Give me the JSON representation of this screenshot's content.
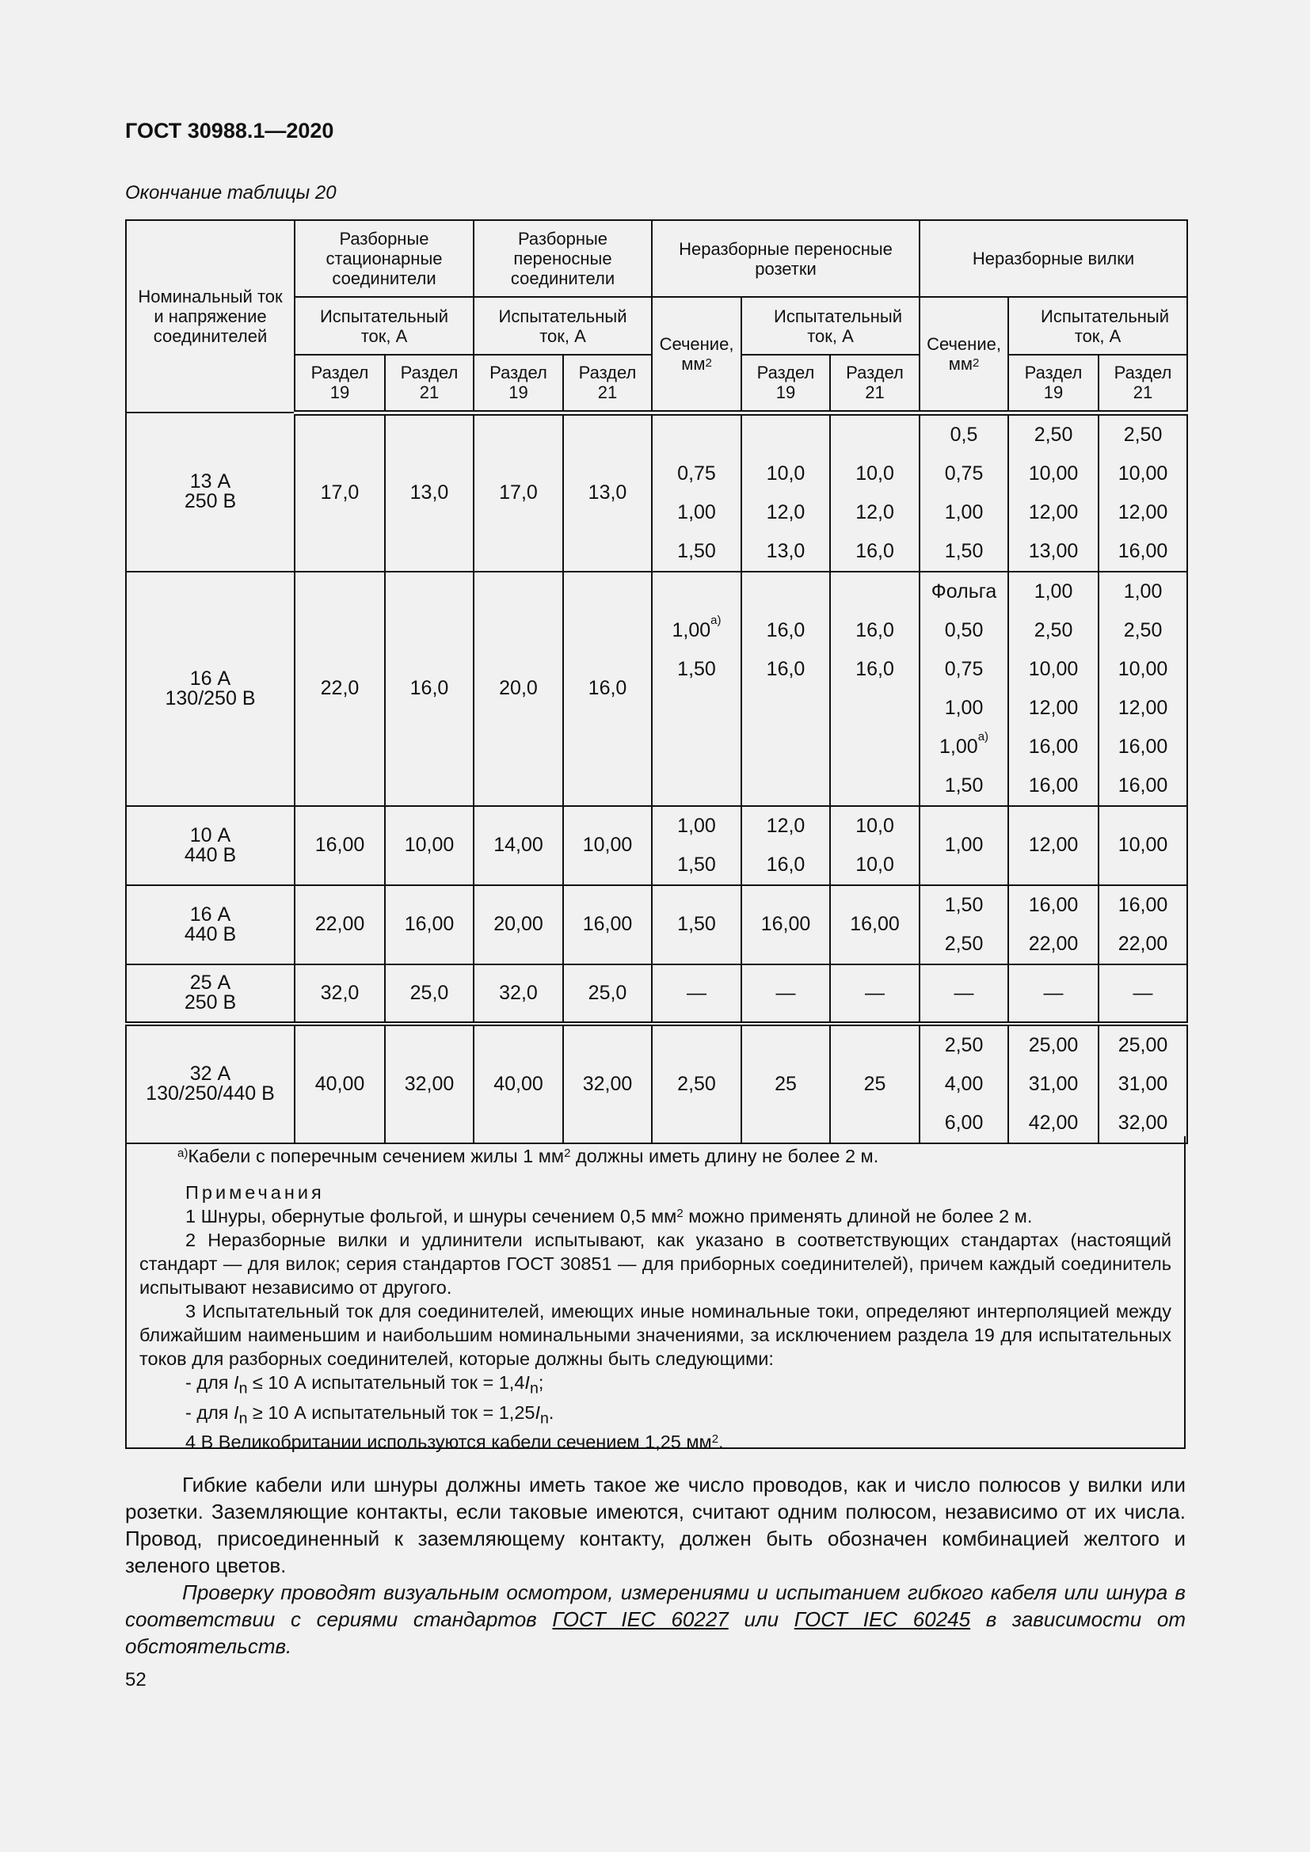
{
  "header": {
    "doc_title": "ГОСТ 30988.1—2020",
    "table_caption": "Окончание таблицы 20"
  },
  "table": {
    "head": {
      "c0": "Номинальный ток и напряжение соединителей",
      "g1": "Разборные стационарные соединители",
      "g2": "Разборные переносные соединители",
      "g3": "Неразборные переносные розетки",
      "g4": "Неразборные вилки",
      "test_current": "Испытательный ток, А",
      "section": "Сечение, мм",
      "section_sup": "2",
      "r19": "Раздел 19",
      "r21": "Раздел 21"
    },
    "rows": [
      {
        "label": [
          "13 А",
          "250 В"
        ],
        "cells": [
          [
            "17,0"
          ],
          [
            "13,0"
          ],
          [
            "17,0"
          ],
          [
            "13,0"
          ],
          [
            "",
            "0,75",
            "1,00",
            "1,50"
          ],
          [
            "",
            "10,0",
            "12,0",
            "13,0"
          ],
          [
            "",
            "10,0",
            "12,0",
            "16,0"
          ],
          [
            "0,5",
            "0,75",
            "1,00",
            "1,50"
          ],
          [
            "2,50",
            "10,00",
            "12,00",
            "13,00"
          ],
          [
            "2,50",
            "10,00",
            "12,00",
            "16,00"
          ]
        ]
      },
      {
        "label": [
          "16 А",
          "130/250 В"
        ],
        "cells": [
          [
            "22,0"
          ],
          [
            "16,0"
          ],
          [
            "20,0"
          ],
          [
            "16,0"
          ],
          [
            "",
            "1,00|а)",
            "1,50",
            "",
            "",
            ""
          ],
          [
            "",
            "16,0",
            "16,0",
            "",
            "",
            ""
          ],
          [
            "",
            "16,0",
            "16,0",
            "",
            "",
            ""
          ],
          [
            "Фольга",
            "0,50",
            "0,75",
            "1,00",
            "1,00|а)",
            "1,50"
          ],
          [
            "1,00",
            "2,50",
            "10,00",
            "12,00",
            "16,00",
            "16,00"
          ],
          [
            "1,00",
            "2,50",
            "10,00",
            "12,00",
            "16,00",
            "16,00"
          ]
        ]
      },
      {
        "label": [
          "10 А",
          "440 В"
        ],
        "cells": [
          [
            "16,00"
          ],
          [
            "10,00"
          ],
          [
            "14,00"
          ],
          [
            "10,00"
          ],
          [
            "1,00",
            "1,50"
          ],
          [
            "12,0",
            "16,0"
          ],
          [
            "10,0",
            "10,0"
          ],
          [
            "1,00"
          ],
          [
            "12,00"
          ],
          [
            "10,00"
          ]
        ]
      },
      {
        "label": [
          "16 А",
          "440 В"
        ],
        "cells": [
          [
            "22,00"
          ],
          [
            "16,00"
          ],
          [
            "20,00"
          ],
          [
            "16,00"
          ],
          [
            "1,50"
          ],
          [
            "16,00"
          ],
          [
            "16,00"
          ],
          [
            "1,50",
            "2,50"
          ],
          [
            "16,00",
            "22,00"
          ],
          [
            "16,00",
            "22,00"
          ]
        ]
      },
      {
        "label": [
          "25 А",
          "250 В"
        ],
        "cells": [
          [
            "32,0"
          ],
          [
            "25,0"
          ],
          [
            "32,0"
          ],
          [
            "25,0"
          ],
          [
            "—"
          ],
          [
            "—"
          ],
          [
            "—"
          ],
          [
            "—"
          ],
          [
            "—"
          ],
          [
            "—"
          ]
        ]
      },
      {
        "label": [
          "32 А",
          "130/250/440 В"
        ],
        "cells": [
          [
            "40,00"
          ],
          [
            "32,00"
          ],
          [
            "40,00"
          ],
          [
            "32,00"
          ],
          [
            "2,50"
          ],
          [
            "25"
          ],
          [
            "25"
          ],
          [
            "2,50",
            "4,00",
            "6,00"
          ],
          [
            "25,00",
            "31,00",
            "42,00"
          ],
          [
            "25,00",
            "31,00",
            "32,00"
          ]
        ]
      }
    ]
  },
  "notes": {
    "footnote_mark": "а)",
    "footnote_a": "Кабели с поперечным сечением жилы 1 мм",
    "footnote_b": " должны иметь длину не более 2 м.",
    "heading": "Примечания",
    "n1a": "1 Шнуры, обернутые фольгой, и шнуры сечением 0,5 мм",
    "n1b": " можно применять длиной не более 2 м.",
    "n2": "2 Неразборные вилки и удлинители испытывают, как указано в соответствующих стандартах (настоящий стандарт — для вилок; серия стандартов ГОСТ 30851 — для приборных соединителей), причем каждый соединитель испытывают независимо от другого.",
    "n3": "3 Испытательный ток для соединителей, имеющих иные номинальные токи, определяют интерполяцией между ближайшим наименьшим и наибольшим номинальными значениями, за исключением раздела 19 для испытательных токов для разборных соединителей, которые должны быть следующими:",
    "b1a": "- для ",
    "b1i": "I",
    "b1s": "n",
    "b1b": " ≤ 10 А испытательный ток = 1,4",
    "b1end": ";",
    "b2a": "- для ",
    "b2i": "I",
    "b2s": "n",
    "b2b": " ≥ 10 А испытательный ток = 1,25",
    "b2end": ".",
    "n4a": "4 В Великобритании используются кабели сечением 1,25 мм",
    "n4b": "."
  },
  "body": {
    "p1": "Гибкие кабели или шнуры должны иметь такое же число проводов, как и число полюсов у вилки или розетки. Заземляющие контакты, если таковые имеются, считают одним полюсом, независимо от их числа. Провод, присоединенный к заземляющему контакту, должен быть обозначен комбинацией желтого и зеленого цветов.",
    "p2a": "Проверку проводят визуальным осмотром, измерениями и испытанием гибкого кабеля или шнура в соответствии с сериями стандартов ",
    "link1": "ГОСТ IEC 60227",
    "p2b": " или ",
    "link2": "ГОСТ IEC 60245",
    "p2c": " в зависимости от обстоятельств."
  },
  "footer": {
    "page_number": "52"
  }
}
